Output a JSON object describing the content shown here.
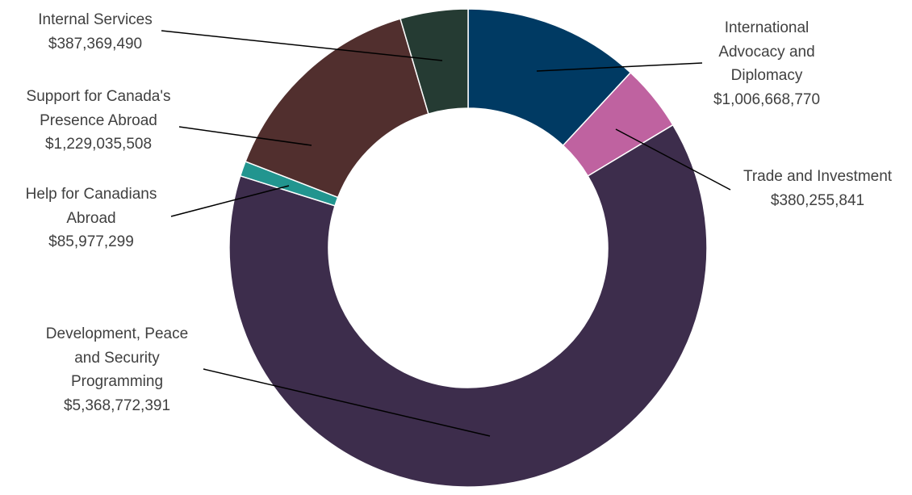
{
  "chart_data": {
    "type": "donut",
    "categories": [
      "International Advocacy and Diplomacy",
      "Trade and Investment",
      "Development, Peace and Security Programming",
      "Help for Canadians Abroad",
      "Support for Canada's Presence Abroad",
      "Internal Services"
    ],
    "values": [
      1006668770,
      380255841,
      5368772391,
      85977299,
      1229035508,
      387369490
    ],
    "value_labels": [
      "$1,006,668,770",
      "$380,255,841",
      "$5,368,772,391",
      "$85,977,299",
      "$1,229,035,508",
      "$387,369,490"
    ],
    "colors": [
      "#003a63",
      "#bf62a0",
      "#3d2d4c",
      "#22958f",
      "#512f2e",
      "#253b33"
    ]
  }
}
